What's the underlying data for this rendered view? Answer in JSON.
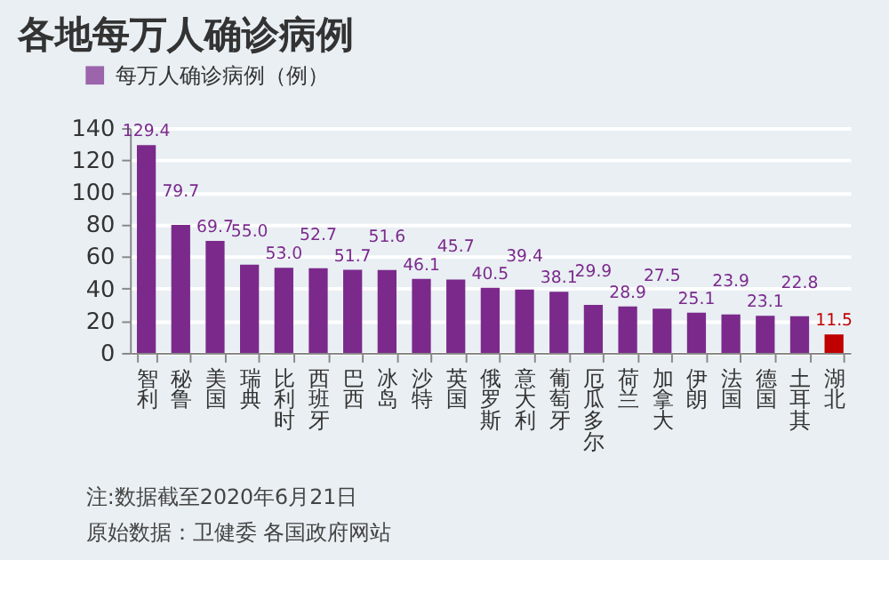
{
  "chart_data": {
    "type": "bar",
    "title": "各地每万人确诊病例",
    "categories": [
      "智利",
      "秘鲁",
      "美国",
      "瑞典",
      "比利时",
      "西班牙",
      "巴西",
      "冰岛",
      "沙特",
      "英国",
      "俄罗斯",
      "意大利",
      "葡萄牙",
      "厄瓜多尔",
      "荷兰",
      "加拿大",
      "伊朗",
      "法国",
      "德国",
      "土耳其",
      "湖北"
    ],
    "series": [
      {
        "name": "每万人确诊病例（例）",
        "color": "#7b2a8c",
        "values": [
          129.4,
          79.7,
          69.7,
          55.0,
          53.0,
          52.7,
          51.7,
          51.6,
          46.1,
          45.7,
          40.5,
          39.4,
          38.1,
          29.9,
          28.9,
          27.5,
          25.1,
          23.9,
          23.1,
          22.8,
          11.5
        ],
        "value_labels": [
          "129.4",
          "79.7",
          "69.7",
          "55.0",
          "53.0",
          "52.7",
          "51.7",
          "51.6",
          "46.1",
          "45.7",
          "40.5",
          "39.4",
          "38.1",
          "29.9",
          "28.9",
          "27.5",
          "25.1",
          "23.9",
          "23.1",
          "22.8",
          "11.5"
        ],
        "colors": [
          "#7b2a8c",
          "#7b2a8c",
          "#7b2a8c",
          "#7b2a8c",
          "#7b2a8c",
          "#7b2a8c",
          "#7b2a8c",
          "#7b2a8c",
          "#7b2a8c",
          "#7b2a8c",
          "#7b2a8c",
          "#7b2a8c",
          "#7b2a8c",
          "#7b2a8c",
          "#7b2a8c",
          "#7b2a8c",
          "#7b2a8c",
          "#7b2a8c",
          "#7b2a8c",
          "#7b2a8c",
          "#c00000"
        ]
      }
    ],
    "ylim": [
      0,
      140
    ],
    "yticks": [
      0,
      20,
      40,
      60,
      80,
      100,
      120,
      140
    ],
    "grid": "y",
    "legend": "top left",
    "annotations": [
      "注:数据截至2020年6月21日",
      "原始数据：卫健委 各国政府网站"
    ]
  }
}
